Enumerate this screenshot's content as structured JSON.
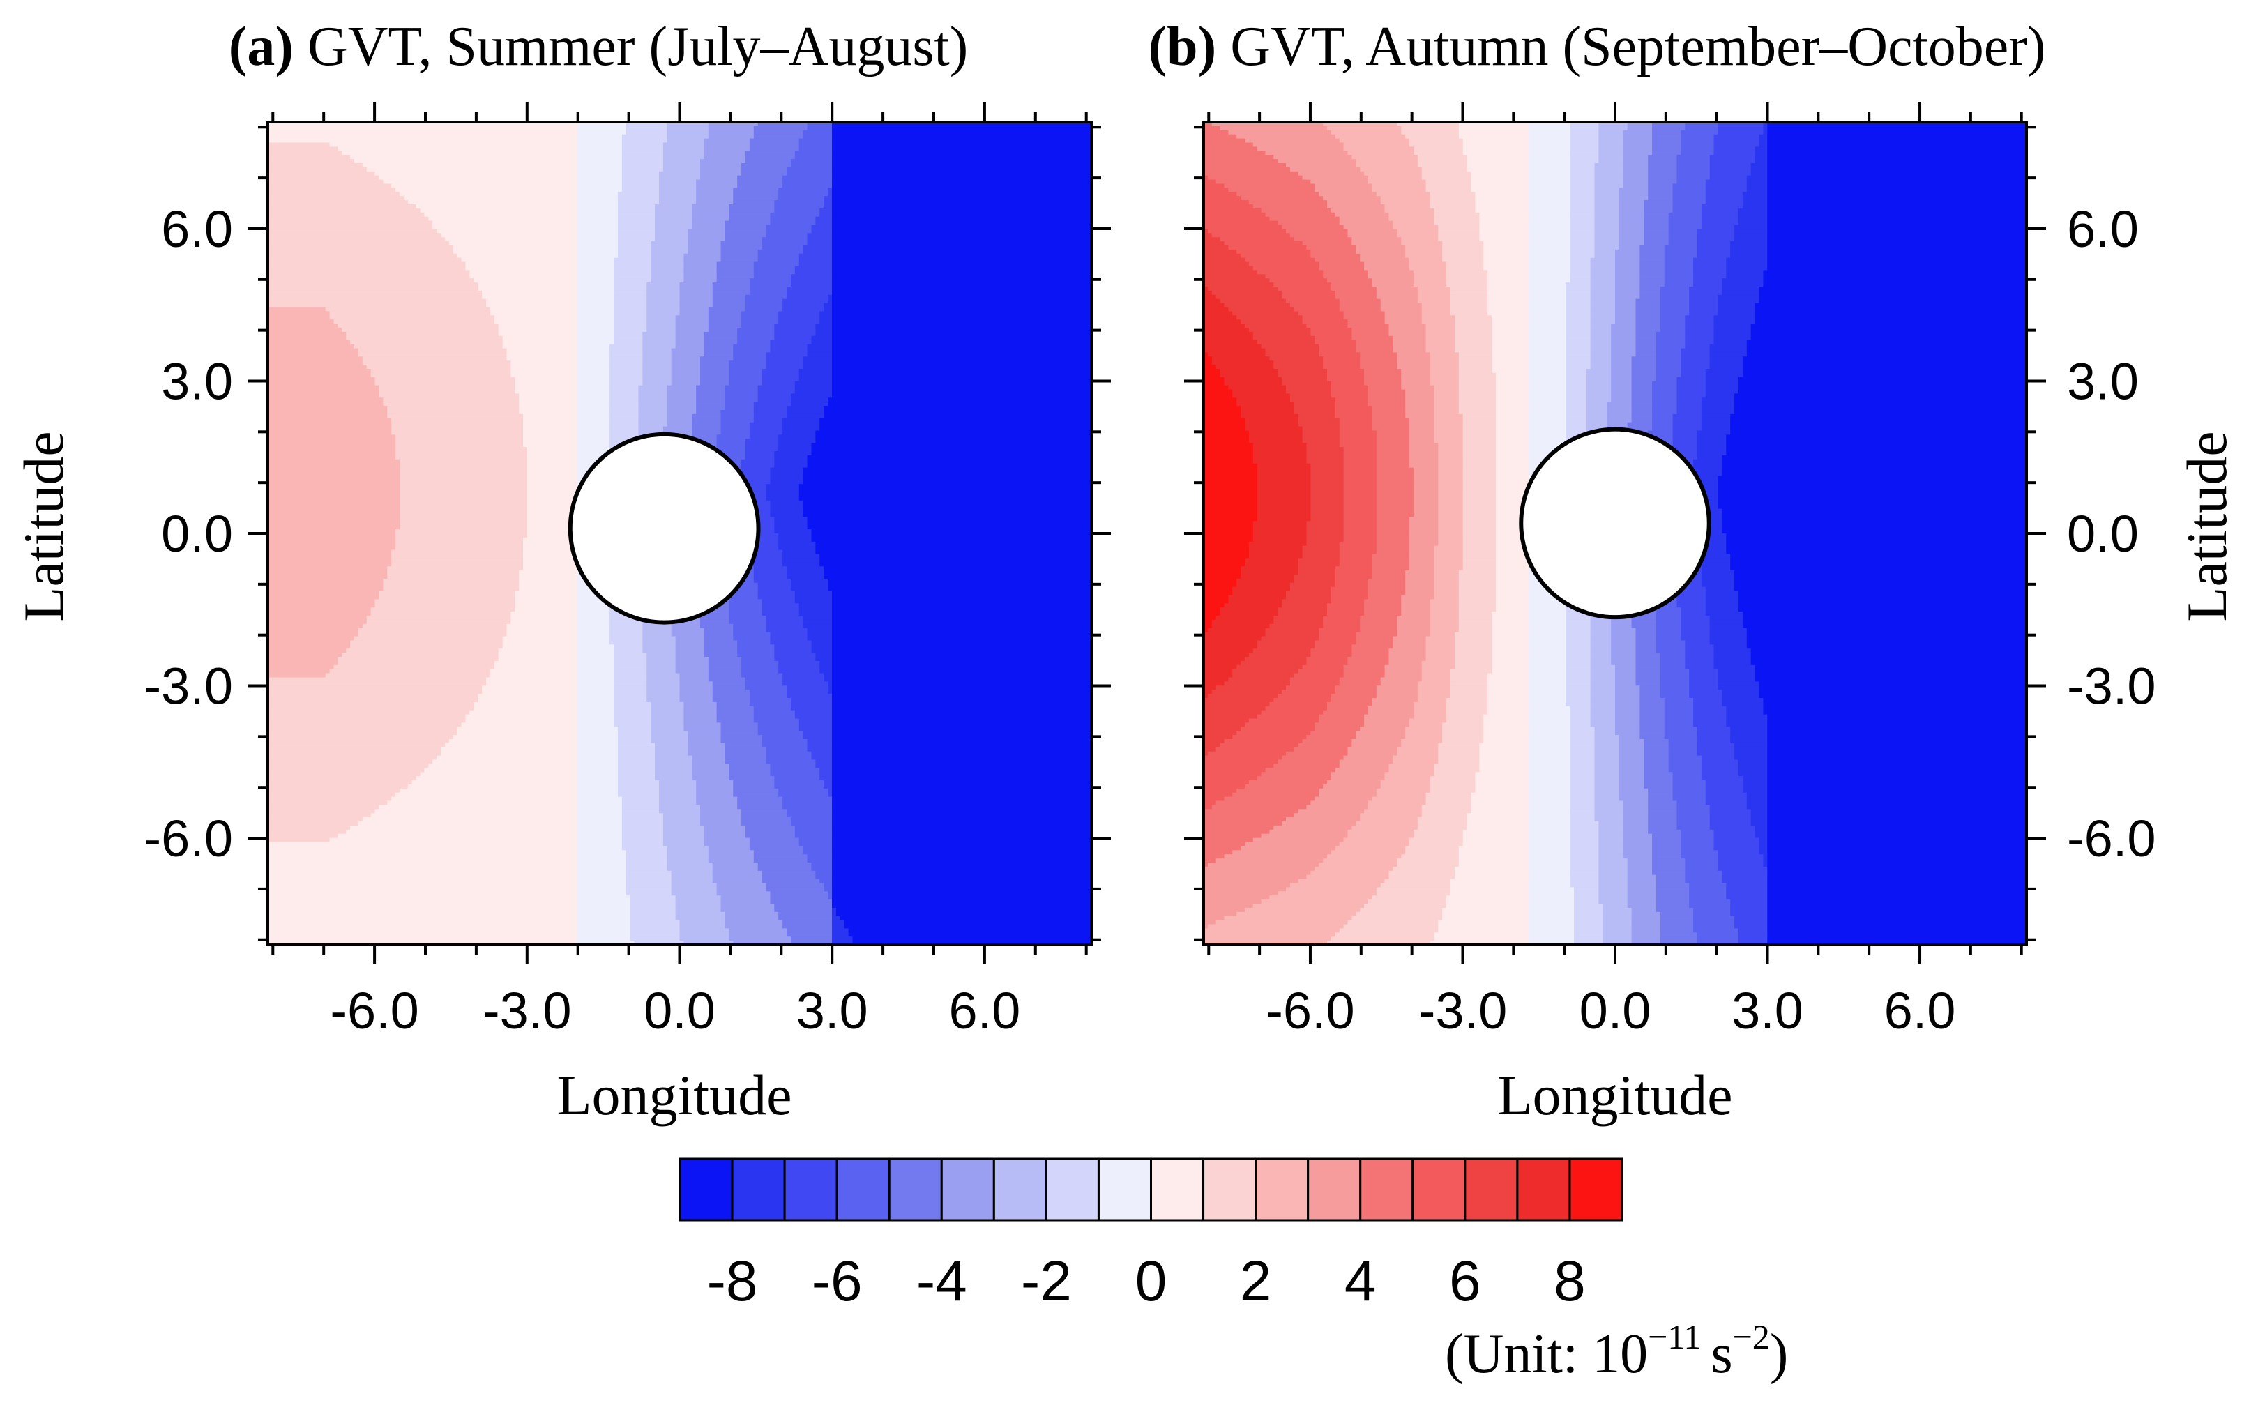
{
  "chart_data": [
    {
      "type": "heatmap",
      "panel_label": "(a)",
      "title": "GVT, Summer (July–August)",
      "xlabel": "Longitude",
      "ylabel": "Latitude",
      "xlim": [
        -8.1,
        8.1
      ],
      "ylim": [
        -8.1,
        8.1
      ],
      "xticks": [
        -6.0,
        -3.0,
        0.0,
        3.0,
        6.0
      ],
      "yticks": [
        6.0,
        3.0,
        0.0,
        -3.0,
        -6.0
      ],
      "ytick_side": "left",
      "ylabel_side": "left",
      "max_center": [
        -6.9,
        0.8
      ],
      "max_value": 2.6,
      "zero_line_x": -1.9,
      "gradient_x": [
        -7.0,
        -3.0,
        -2.0,
        -1.0,
        0.0,
        1.0,
        2.0,
        3.0,
        5.0,
        8.1
      ],
      "gradient_v": [
        2.6,
        1.0,
        0.0,
        -1.8,
        -3.8,
        -5.8,
        -7.5,
        -9.0,
        -9.5,
        -9.5
      ],
      "lat_shape": [
        0.02,
        0.055
      ],
      "marker": {
        "type": "circle",
        "center": [
          -0.3,
          0.1
        ],
        "radius": 1.85
      }
    },
    {
      "type": "heatmap",
      "panel_label": "(b)",
      "title": "GVT, Autumn (September–October)",
      "xlabel": "Longitude",
      "ylabel": "Latitude",
      "xlim": [
        -8.1,
        8.1
      ],
      "ylim": [
        -8.1,
        8.1
      ],
      "xticks": [
        -6.0,
        -3.0,
        0.0,
        3.0,
        6.0
      ],
      "yticks": [
        6.0,
        3.0,
        0.0,
        -3.0,
        -6.0
      ],
      "ytick_side": "right",
      "ylabel_side": "right",
      "max_center": [
        -7.8,
        0.8
      ],
      "max_value": 9.0,
      "zero_line_x": -1.5,
      "gradient_x": [
        -8.1,
        -6.0,
        -4.0,
        -3.0,
        -2.0,
        -1.0,
        0.0,
        1.0,
        2.0,
        3.0,
        8.1
      ],
      "gradient_v": [
        9.0,
        7.0,
        4.0,
        2.0,
        0.5,
        -1.0,
        -3.5,
        -6.0,
        -8.0,
        -9.5,
        -9.5
      ],
      "lat_shape": [
        0.015,
        0.035
      ],
      "marker": {
        "type": "circle",
        "center": [
          0.0,
          0.2
        ],
        "radius": 1.85
      }
    }
  ],
  "colorbar": {
    "levels": [
      -9,
      -8,
      -7,
      -6,
      -5,
      -4,
      -3,
      -2,
      -1,
      0,
      1,
      2,
      3,
      4,
      5,
      6,
      7,
      8,
      9
    ],
    "colors": [
      "#0a14f5",
      "#2a35f1",
      "#4048f3",
      "#5a62f1",
      "#7379ef",
      "#9b9ff2",
      "#b7bbf6",
      "#d3d5fa",
      "#eeeffd",
      "#fdeceb",
      "#fbd3d2",
      "#f9b6b5",
      "#f79c9c",
      "#f47475",
      "#f25a5c",
      "#ef4243",
      "#ee2c2b",
      "#fc1413"
    ],
    "tick_labels": [
      "-8",
      "-6",
      "-4",
      "-2",
      "0",
      "2",
      "4",
      "6",
      "8"
    ],
    "tick_values": [
      -8,
      -6,
      -4,
      -2,
      0,
      2,
      4,
      6,
      8
    ],
    "unit_label": "(Unit: 10",
    "unit_exp1": "−11",
    "unit_s": "s",
    "unit_exp2": "−2",
    "unit_close": ")"
  }
}
